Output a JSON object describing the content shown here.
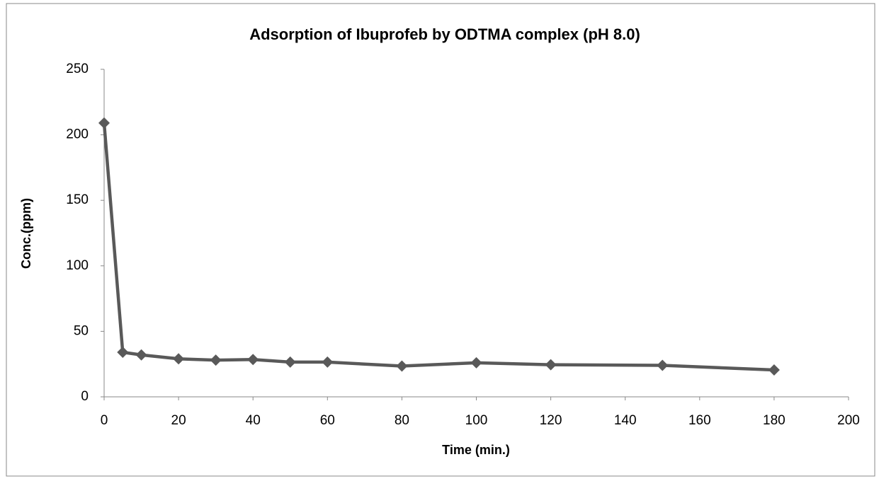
{
  "chart_data": {
    "type": "line",
    "title": "Adsorption of Ibuprofeb by ODTMA complex (pH 8.0)",
    "x_label": "Time (min.)",
    "y_label": "Conc.(ppm)",
    "x": [
      0,
      5,
      10,
      20,
      30,
      40,
      50,
      60,
      80,
      100,
      120,
      150,
      180
    ],
    "series": [
      {
        "name": "Conc.",
        "color": "#595959",
        "values": [
          209,
          34,
          32,
          29,
          28,
          28.5,
          26.5,
          26.5,
          23.5,
          26,
          24.5,
          24,
          20.5
        ]
      }
    ],
    "xlim": [
      0,
      200
    ],
    "xticks": [
      0,
      20,
      40,
      60,
      80,
      100,
      120,
      140,
      160,
      180,
      200
    ],
    "ylim": [
      0,
      250
    ],
    "yticks": [
      0,
      50,
      100,
      150,
      200,
      250
    ],
    "grid": false
  }
}
